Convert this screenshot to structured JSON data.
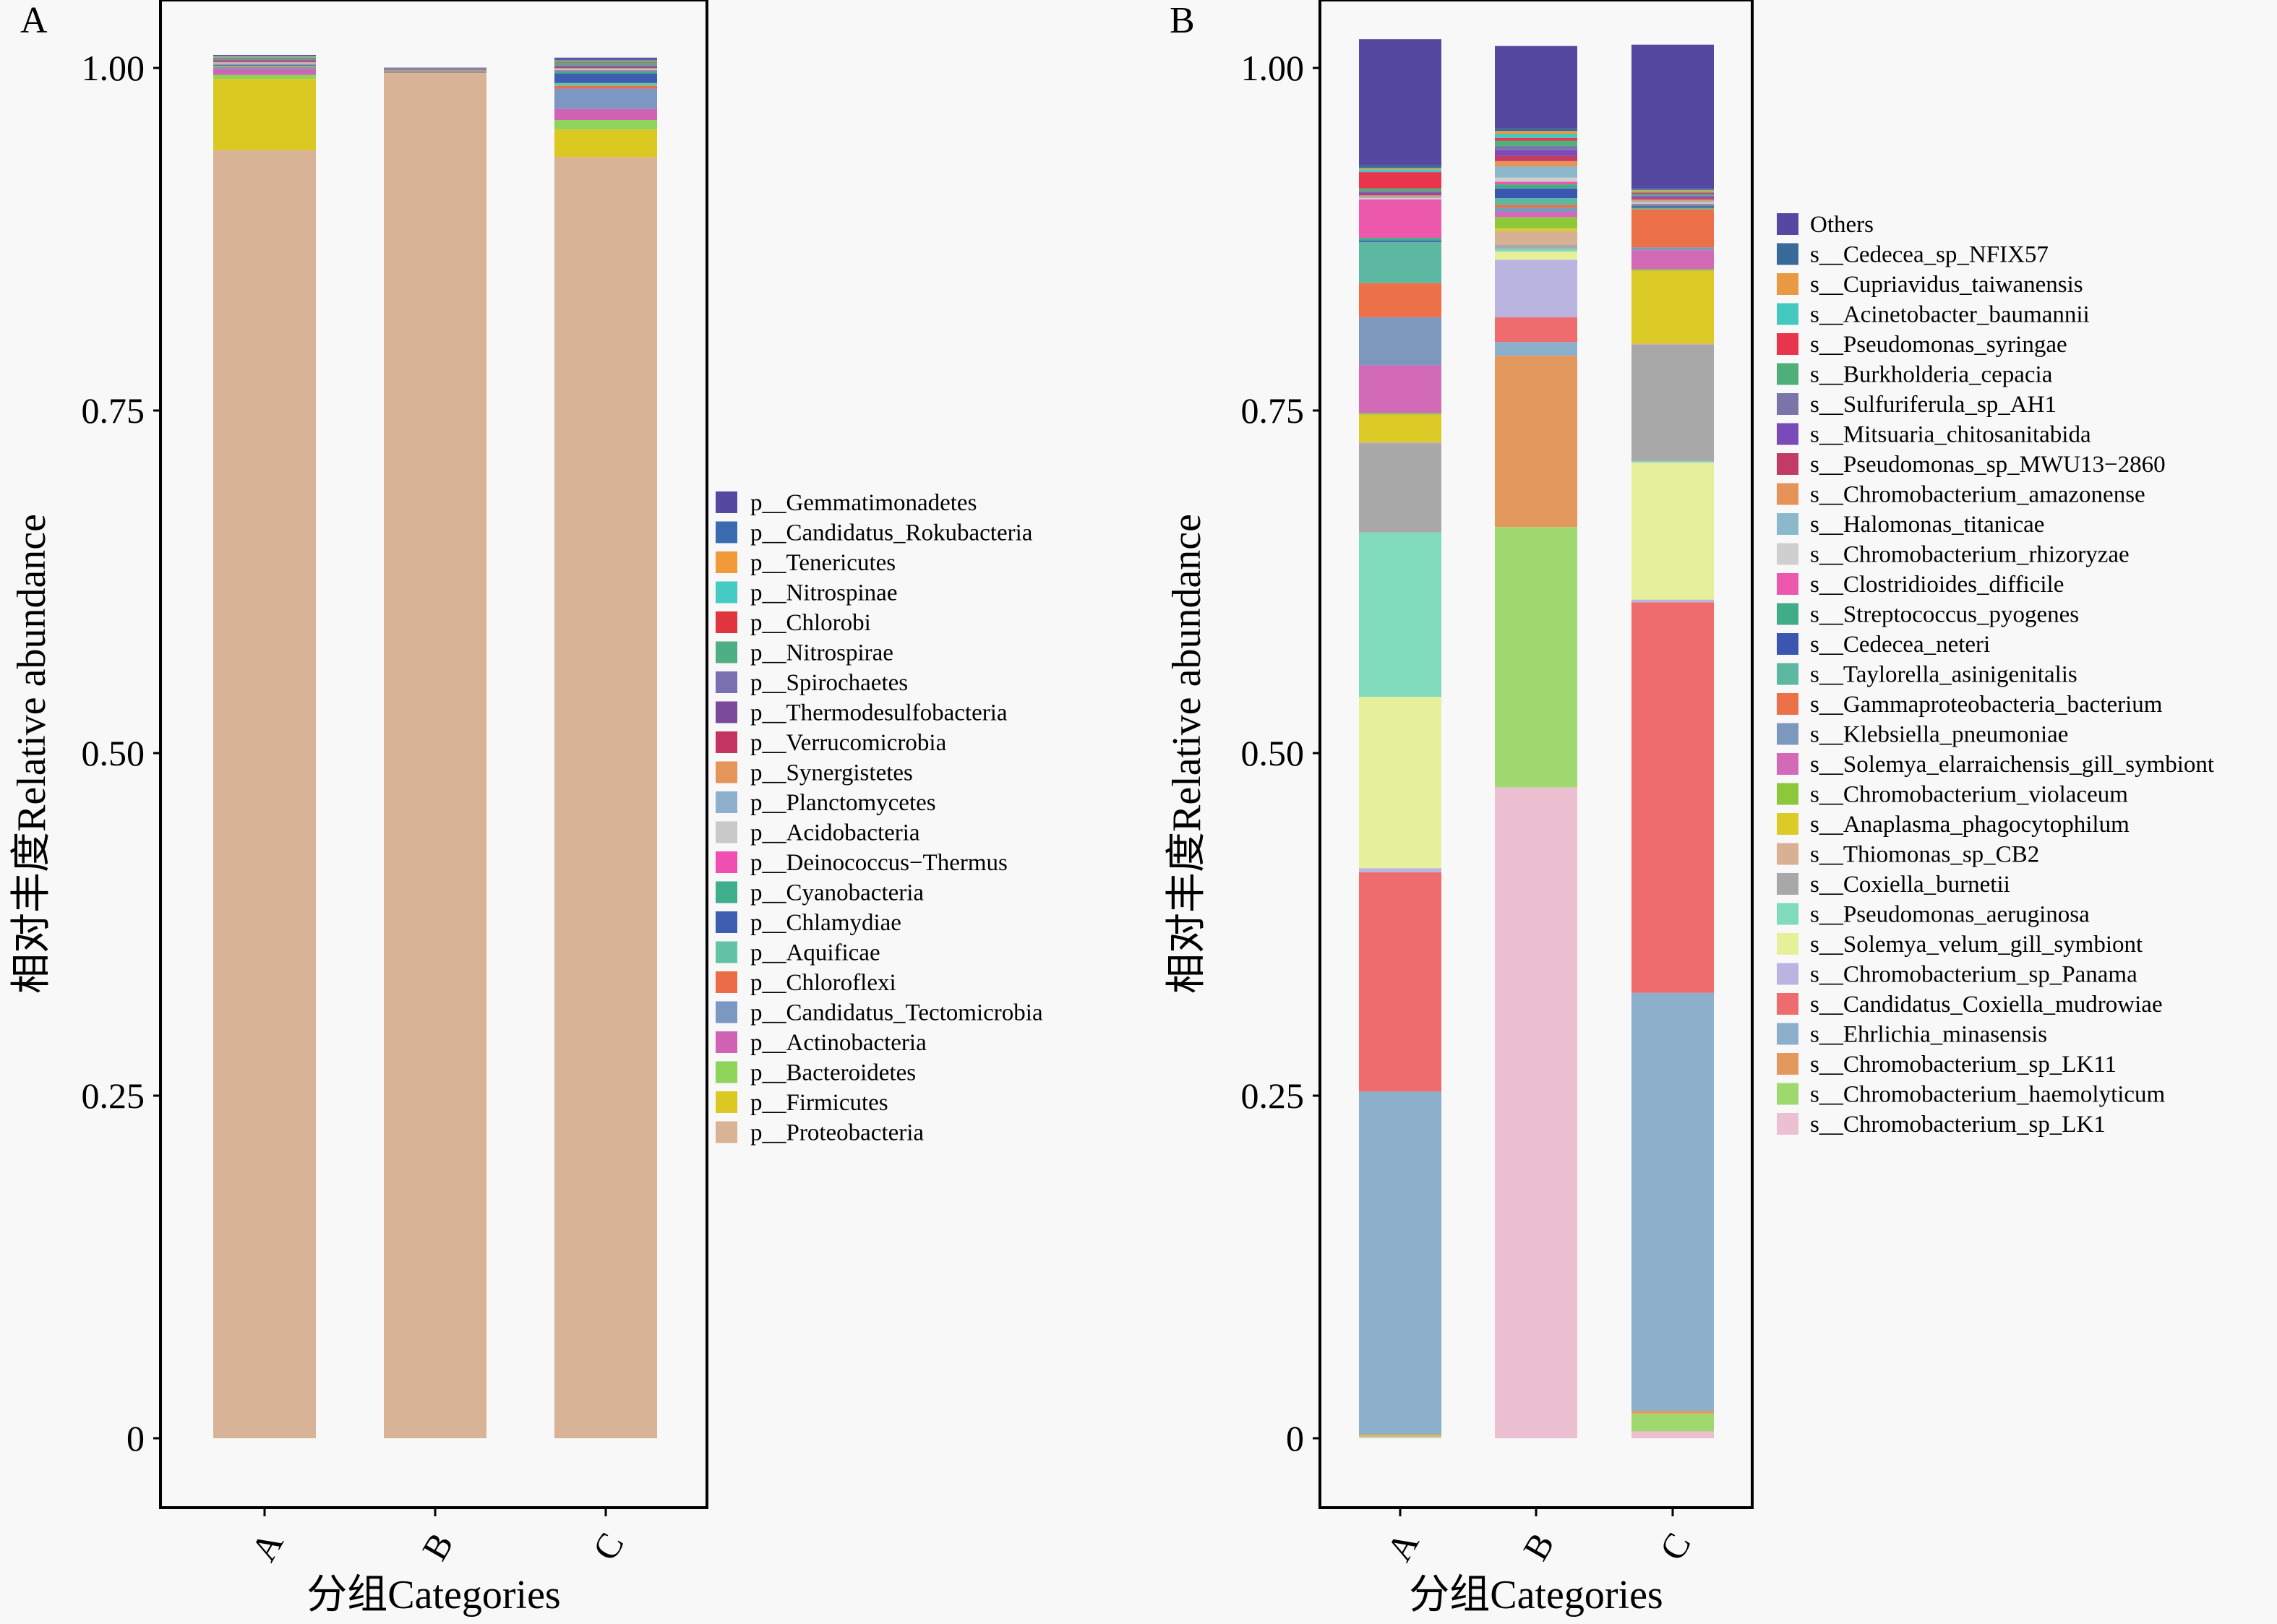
{
  "chart_data": [
    {
      "panel": "A",
      "type": "bar",
      "stacked": true,
      "xlabel": "分组Categories",
      "ylabel": "相对丰度Relative abundance",
      "ylim": [
        0,
        1
      ],
      "yticks": [
        "0",
        "0.25",
        "0.50",
        "0.75",
        "1.00"
      ],
      "ytick_values": [
        0,
        0.25,
        0.5,
        0.75,
        1.0
      ],
      "categories": [
        "A",
        "B",
        "C"
      ],
      "legend_position": "right",
      "series": [
        {
          "name": "p__Gemmatimonadetes",
          "color": "#5548a0",
          "values": [
            0.0005,
            0.0002,
            0.001
          ]
        },
        {
          "name": "p__Candidatus_Rokubacteria",
          "color": "#3a6bb0",
          "values": [
            0.0005,
            0.0002,
            0.001
          ]
        },
        {
          "name": "p__Tenericutes",
          "color": "#f29a3a",
          "values": [
            0.0005,
            0.0002,
            0.0005
          ]
        },
        {
          "name": "p__Nitrospinae",
          "color": "#45cbc4",
          "values": [
            0.0005,
            0.0002,
            0.0005
          ]
        },
        {
          "name": "p__Chlorobi",
          "color": "#e0343f",
          "values": [
            0.0005,
            0.0002,
            0.0005
          ]
        },
        {
          "name": "p__Nitrospirae",
          "color": "#4fae84",
          "values": [
            0.001,
            0.0002,
            0.002
          ]
        },
        {
          "name": "p__Spirochaetes",
          "color": "#7a70b0",
          "values": [
            0.0005,
            0.0002,
            0.001
          ]
        },
        {
          "name": "p__Thermodesulfobacteria",
          "color": "#7c4a9a",
          "values": [
            0.0005,
            0.0002,
            0.0005
          ]
        },
        {
          "name": "p__Verrucomicrobia",
          "color": "#c43460",
          "values": [
            0.0005,
            0.0002,
            0.0005
          ]
        },
        {
          "name": "p__Synergistetes",
          "color": "#e5955a",
          "values": [
            0.0005,
            0.0002,
            0.0005
          ]
        },
        {
          "name": "p__Planctomycetes",
          "color": "#8fb0cc",
          "values": [
            0.0005,
            0.0002,
            0.0005
          ]
        },
        {
          "name": "p__Acidobacteria",
          "color": "#c9c9c9",
          "values": [
            0.0005,
            0.0002,
            0.0005
          ]
        },
        {
          "name": "p__Deinococcus−Thermus",
          "color": "#ee4fb0",
          "values": [
            0.0005,
            0.0002,
            0.0005
          ]
        },
        {
          "name": "p__Cyanobacteria",
          "color": "#3fae8a",
          "values": [
            0.0005,
            0.0002,
            0.002
          ]
        },
        {
          "name": "p__Chlamydiae",
          "color": "#3d5db0",
          "values": [
            0.0005,
            0.0002,
            0.007
          ]
        },
        {
          "name": "p__Aquificae",
          "color": "#62c4a4",
          "values": [
            0.001,
            0.0002,
            0.002
          ]
        },
        {
          "name": "p__Chloroflexi",
          "color": "#ea6d48",
          "values": [
            0.0005,
            0.0002,
            0.002
          ]
        },
        {
          "name": "p__Candidatus_Tectomicrobia",
          "color": "#7b97c2",
          "values": [
            0.001,
            0.0002,
            0.015
          ]
        },
        {
          "name": "p__Actinobacteria",
          "color": "#d163b5",
          "values": [
            0.004,
            0.0002,
            0.008
          ]
        },
        {
          "name": "p__Bacteroidetes",
          "color": "#8ed35a",
          "values": [
            0.003,
            0.0002,
            0.007
          ]
        },
        {
          "name": "p__Firmicutes",
          "color": "#dbc922",
          "values": [
            0.052,
            0.0002,
            0.02
          ]
        },
        {
          "name": "p__Proteobacteria",
          "color": "#d8b396",
          "values": [
            0.94,
            0.996,
            0.935
          ]
        }
      ]
    },
    {
      "panel": "B",
      "type": "bar",
      "stacked": true,
      "xlabel": "分组Categories",
      "ylabel": "相对丰度Relative abundance",
      "ylim": [
        0,
        1
      ],
      "yticks": [
        "0",
        "0.25",
        "0.50",
        "0.75",
        "1.00"
      ],
      "ytick_values": [
        0,
        0.25,
        0.5,
        0.75,
        1.0
      ],
      "categories": [
        "A",
        "B",
        "C"
      ],
      "legend_position": "right",
      "series": [
        {
          "name": "Others",
          "color": "#5548a0",
          "values": [
            0.092,
            0.06,
            0.105
          ]
        },
        {
          "name": "s__Cedecea_sp_NFIX57",
          "color": "#3a6a9a",
          "values": [
            0.002,
            0.002,
            0.001
          ]
        },
        {
          "name": "s__Cupriavidus_taiwanensis",
          "color": "#e89a40",
          "values": [
            0.001,
            0.002,
            0.001
          ]
        },
        {
          "name": "s__Acinetobacter_baumannii",
          "color": "#45c8c0",
          "values": [
            0.002,
            0.003,
            0.001
          ]
        },
        {
          "name": "s__Pseudomonas_syringae",
          "color": "#e8344c",
          "values": [
            0.012,
            0.002,
            0.001
          ]
        },
        {
          "name": "s__Burkholderia_cepacia",
          "color": "#4fae7a",
          "values": [
            0.002,
            0.004,
            0.001
          ]
        },
        {
          "name": "s__Sulfuriferula_sp_AH1",
          "color": "#7a74a8",
          "values": [
            0.001,
            0.003,
            0.001
          ]
        },
        {
          "name": "s__Mitsuaria_chitosanitabida",
          "color": "#7a4ab8",
          "values": [
            0.001,
            0.004,
            0.001
          ]
        },
        {
          "name": "s__Pseudomonas_sp_MWU13−2860",
          "color": "#c03c64",
          "values": [
            0.001,
            0.004,
            0.001
          ]
        },
        {
          "name": "s__Chromobacterium_amazonense",
          "color": "#e6935a",
          "values": [
            0.001,
            0.004,
            0.001
          ]
        },
        {
          "name": "s__Halomonas_titanicae",
          "color": "#8cb8cc",
          "values": [
            0.001,
            0.008,
            0.001
          ]
        },
        {
          "name": "s__Chromobacterium_rhizoryzae",
          "color": "#cfcfcf",
          "values": [
            0.001,
            0.003,
            0.001
          ]
        },
        {
          "name": "s__Clostridioides_difficile",
          "color": "#ec58ac",
          "values": [
            0.028,
            0.002,
            0.001
          ]
        },
        {
          "name": "s__Streptococcus_pyogenes",
          "color": "#40ac88",
          "values": [
            0.002,
            0.003,
            0.001
          ]
        },
        {
          "name": "s__Cedecea_neteri",
          "color": "#3a56b0",
          "values": [
            0.001,
            0.007,
            0.001
          ]
        },
        {
          "name": "s__Taylorella_asinigenitalis",
          "color": "#5cb8a0",
          "values": [
            0.03,
            0.005,
            0.001
          ]
        },
        {
          "name": "s__Gammaproteobacteria_bacterium",
          "color": "#ec7048",
          "values": [
            0.025,
            0.002,
            0.028
          ]
        },
        {
          "name": "s__Klebsiella_pneumoniae",
          "color": "#7d98bd",
          "values": [
            0.035,
            0.003,
            0.002
          ]
        },
        {
          "name": "s__Solemya_elarraichensis_gill_symbiont",
          "color": "#d26ab8",
          "values": [
            0.035,
            0.004,
            0.014
          ]
        },
        {
          "name": "s__Chromobacterium_violaceum",
          "color": "#8cc83a",
          "values": [
            0.001,
            0.008,
            0.001
          ]
        },
        {
          "name": "s__Anaplasma_phagocytophilum",
          "color": "#dccb26",
          "values": [
            0.02,
            0.002,
            0.053
          ]
        },
        {
          "name": "s__Thiomonas_sp_CB2",
          "color": "#d8b094",
          "values": [
            0.001,
            0.01,
            0.001
          ]
        },
        {
          "name": "s__Coxiella_burnetii",
          "color": "#a8a8a8",
          "values": [
            0.065,
            0.003,
            0.085
          ]
        },
        {
          "name": "s__Pseudomonas_aeruginosa",
          "color": "#80dabc",
          "values": [
            0.12,
            0.002,
            0.001
          ]
        },
        {
          "name": "s__Solemya_velum_gill_symbiont",
          "color": "#e6f09a",
          "values": [
            0.125,
            0.006,
            0.1
          ]
        },
        {
          "name": "s__Chromobacterium_sp_Panama",
          "color": "#bab4e0",
          "values": [
            0.003,
            0.042,
            0.002
          ]
        },
        {
          "name": "s__Candidatus_Coxiella_mudrowiae",
          "color": "#ee6c6e",
          "values": [
            0.16,
            0.018,
            0.285
          ]
        },
        {
          "name": "s__Ehrlichia_minasensis",
          "color": "#8cafcc",
          "values": [
            0.25,
            0.01,
            0.305
          ]
        },
        {
          "name": "s__Chromobacterium_sp_LK11",
          "color": "#e3985e",
          "values": [
            0.001,
            0.125,
            0.002
          ]
        },
        {
          "name": "s__Chromobacterium_haemolyticum",
          "color": "#a0d870",
          "values": [
            0.001,
            0.19,
            0.013
          ]
        },
        {
          "name": "s__Chromobacterium_sp_LK1",
          "color": "#ecc0d0",
          "values": [
            0.001,
            0.475,
            0.005
          ]
        }
      ]
    }
  ]
}
